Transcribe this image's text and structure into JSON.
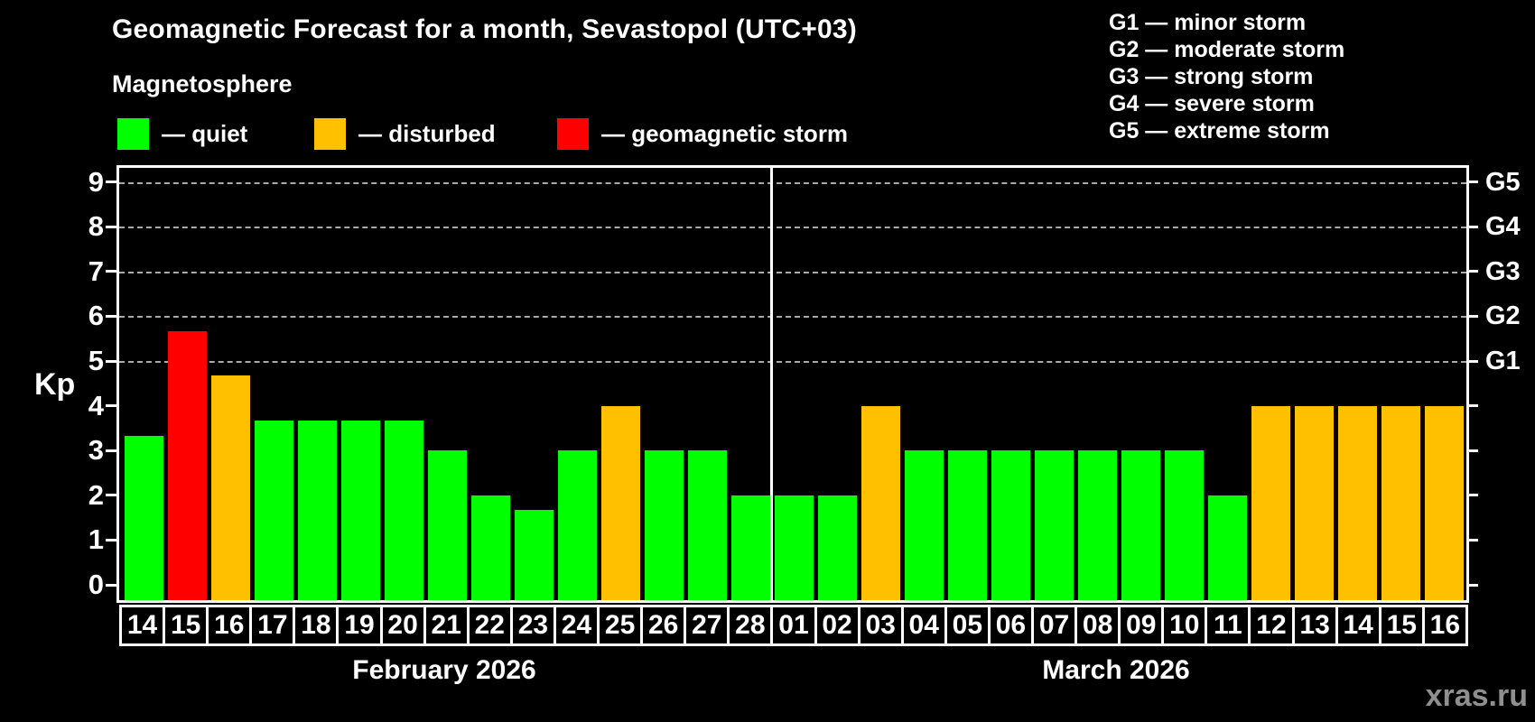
{
  "header": {
    "title": "Geomagnetic Forecast for a month, Sevastopol (UTC+03)",
    "subtitle": "Magnetosphere"
  },
  "legend": {
    "items": [
      {
        "key": "quiet",
        "label": "— quiet"
      },
      {
        "key": "disturbed",
        "label": "— disturbed"
      },
      {
        "key": "storm",
        "label": "— geomagnetic storm"
      }
    ]
  },
  "g_legend": [
    "G1 — minor storm",
    "G2 — moderate storm",
    "G3 — strong storm",
    "G4 — severe storm",
    "G5 — extreme storm"
  ],
  "colors": {
    "quiet": "#00ff00",
    "disturbed": "#ffc000",
    "storm": "#ff0000",
    "background": "#000000",
    "text": "#ffffff",
    "grid": "#aaaaaa",
    "watermark": "#8f8f8f"
  },
  "axes": {
    "y_label": "Kp",
    "y_ticks": [
      0,
      1,
      2,
      3,
      4,
      5,
      6,
      7,
      8,
      9
    ],
    "gridlines_kp": [
      5,
      6,
      7,
      8,
      9
    ],
    "right_labels": [
      {
        "label": "G1",
        "kp": 5
      },
      {
        "label": "G2",
        "kp": 6
      },
      {
        "label": "G3",
        "kp": 7
      },
      {
        "label": "G4",
        "kp": 8
      },
      {
        "label": "G5",
        "kp": 9
      }
    ]
  },
  "months": [
    {
      "label": "February 2026",
      "days": [
        {
          "day": "14",
          "value": 3.33,
          "status": "quiet"
        },
        {
          "day": "15",
          "value": 5.67,
          "status": "storm"
        },
        {
          "day": "16",
          "value": 4.67,
          "status": "disturbed"
        },
        {
          "day": "17",
          "value": 3.67,
          "status": "quiet"
        },
        {
          "day": "18",
          "value": 3.67,
          "status": "quiet"
        },
        {
          "day": "19",
          "value": 3.67,
          "status": "quiet"
        },
        {
          "day": "20",
          "value": 3.67,
          "status": "quiet"
        },
        {
          "day": "21",
          "value": 3.0,
          "status": "quiet"
        },
        {
          "day": "22",
          "value": 2.0,
          "status": "quiet"
        },
        {
          "day": "23",
          "value": 1.67,
          "status": "quiet"
        },
        {
          "day": "24",
          "value": 3.0,
          "status": "quiet"
        },
        {
          "day": "25",
          "value": 4.0,
          "status": "disturbed"
        },
        {
          "day": "26",
          "value": 3.0,
          "status": "quiet"
        },
        {
          "day": "27",
          "value": 3.0,
          "status": "quiet"
        },
        {
          "day": "28",
          "value": 2.0,
          "status": "quiet"
        }
      ]
    },
    {
      "label": "March 2026",
      "days": [
        {
          "day": "01",
          "value": 2.0,
          "status": "quiet"
        },
        {
          "day": "02",
          "value": 2.0,
          "status": "quiet"
        },
        {
          "day": "03",
          "value": 4.0,
          "status": "disturbed"
        },
        {
          "day": "04",
          "value": 3.0,
          "status": "quiet"
        },
        {
          "day": "05",
          "value": 3.0,
          "status": "quiet"
        },
        {
          "day": "06",
          "value": 3.0,
          "status": "quiet"
        },
        {
          "day": "07",
          "value": 3.0,
          "status": "quiet"
        },
        {
          "day": "08",
          "value": 3.0,
          "status": "quiet"
        },
        {
          "day": "09",
          "value": 3.0,
          "status": "quiet"
        },
        {
          "day": "10",
          "value": 3.0,
          "status": "quiet"
        },
        {
          "day": "11",
          "value": 2.0,
          "status": "quiet"
        },
        {
          "day": "12",
          "value": 4.0,
          "status": "disturbed"
        },
        {
          "day": "13",
          "value": 4.0,
          "status": "disturbed"
        },
        {
          "day": "14",
          "value": 4.0,
          "status": "disturbed"
        },
        {
          "day": "15",
          "value": 4.0,
          "status": "disturbed"
        },
        {
          "day": "16",
          "value": 4.0,
          "status": "disturbed"
        }
      ]
    }
  ],
  "watermark": "xras.ru",
  "chart_data": {
    "type": "bar",
    "title": "Geomagnetic Forecast for a month, Sevastopol (UTC+03)",
    "xlabel": "",
    "ylabel": "Kp",
    "ylim": [
      0,
      9.4
    ],
    "yticks": [
      0,
      1,
      2,
      3,
      4,
      5,
      6,
      7,
      8,
      9
    ],
    "grid": "horizontal dashed lines at Kp 5,6,7,8,9 (G1–G5 levels)",
    "legend_position": "top-left (quiet/disturbed/storm), top-right (G1–G5 scale)",
    "right_axis_labels": {
      "G1": 5,
      "G2": 6,
      "G3": 7,
      "G4": 8,
      "G5": 9
    },
    "categories": [
      "Feb 14",
      "Feb 15",
      "Feb 16",
      "Feb 17",
      "Feb 18",
      "Feb 19",
      "Feb 20",
      "Feb 21",
      "Feb 22",
      "Feb 23",
      "Feb 24",
      "Feb 25",
      "Feb 26",
      "Feb 27",
      "Feb 28",
      "Mar 01",
      "Mar 02",
      "Mar 03",
      "Mar 04",
      "Mar 05",
      "Mar 06",
      "Mar 07",
      "Mar 08",
      "Mar 09",
      "Mar 10",
      "Mar 11",
      "Mar 12",
      "Mar 13",
      "Mar 14",
      "Mar 15",
      "Mar 16"
    ],
    "values": [
      3.33,
      5.67,
      4.67,
      3.67,
      3.67,
      3.67,
      3.67,
      3.0,
      2.0,
      1.67,
      3.0,
      4.0,
      3.0,
      3.0,
      2.0,
      2.0,
      2.0,
      4.0,
      3.0,
      3.0,
      3.0,
      3.0,
      3.0,
      3.0,
      3.0,
      2.0,
      4.0,
      4.0,
      4.0,
      4.0,
      4.0
    ],
    "statuses": [
      "quiet",
      "storm",
      "disturbed",
      "quiet",
      "quiet",
      "quiet",
      "quiet",
      "quiet",
      "quiet",
      "quiet",
      "quiet",
      "disturbed",
      "quiet",
      "quiet",
      "quiet",
      "quiet",
      "quiet",
      "disturbed",
      "quiet",
      "quiet",
      "quiet",
      "quiet",
      "quiet",
      "quiet",
      "quiet",
      "quiet",
      "disturbed",
      "disturbed",
      "disturbed",
      "disturbed",
      "disturbed"
    ]
  }
}
